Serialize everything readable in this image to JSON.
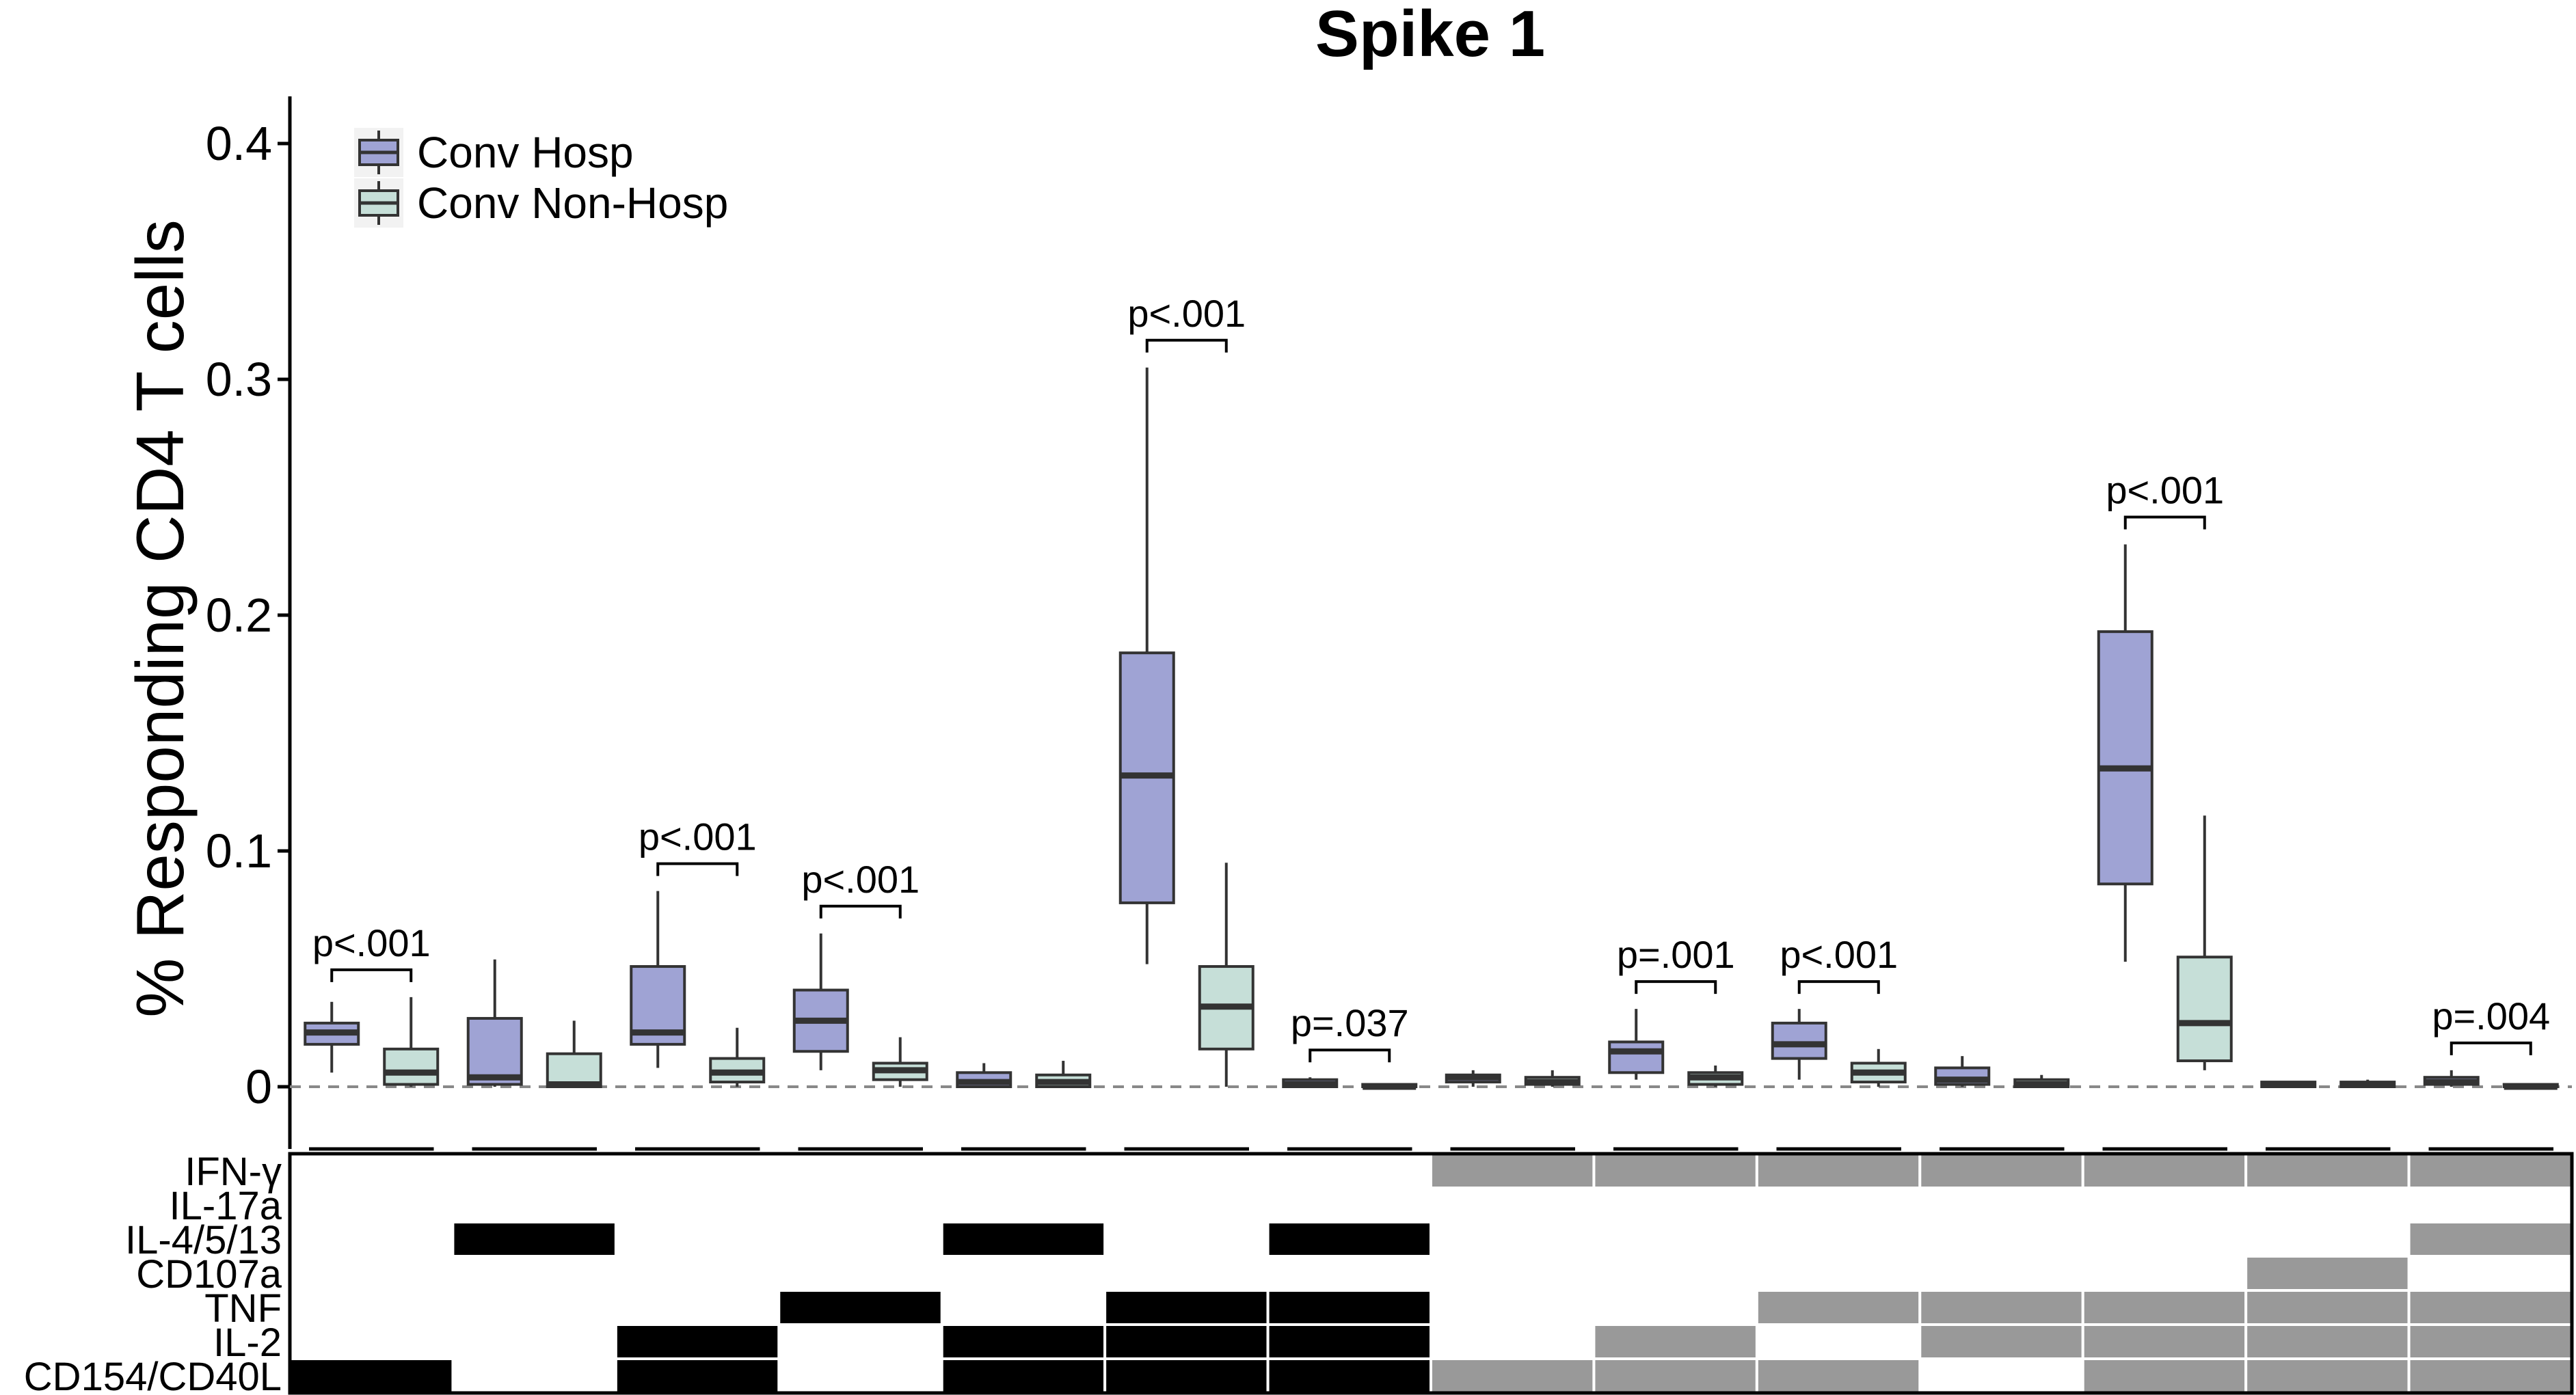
{
  "chart_data": {
    "type": "box",
    "title": "Spike 1",
    "ylabel": "% Responding CD4 T cells",
    "ylim": [
      -0.02,
      0.42
    ],
    "yticks": [
      0,
      0.1,
      0.2,
      0.3,
      0.4
    ],
    "ytick_labels": [
      "0",
      "0.1",
      "0.2",
      "0.3",
      "0.4"
    ],
    "reference_line": 0,
    "legend_position": "top-left",
    "series": [
      {
        "name": "Conv Hosp",
        "color": "#9fa3d4"
      },
      {
        "name": "Conv Non-Hosp",
        "color": "#c6dfd8"
      }
    ],
    "groups": [
      {
        "boxes": [
          {
            "min": 0.006,
            "q1": 0.018,
            "median": 0.023,
            "q3": 0.027,
            "max": 0.036
          },
          {
            "min": 0.0,
            "q1": 0.001,
            "median": 0.006,
            "q3": 0.016,
            "max": 0.038
          }
        ],
        "pvalue": "p<.001"
      },
      {
        "boxes": [
          {
            "min": 0.0,
            "q1": 0.001,
            "median": 0.004,
            "q3": 0.029,
            "max": 0.054
          },
          {
            "min": 0.0,
            "q1": 0.0,
            "median": 0.001,
            "q3": 0.014,
            "max": 0.028
          }
        ],
        "pvalue": ""
      },
      {
        "boxes": [
          {
            "min": 0.008,
            "q1": 0.018,
            "median": 0.023,
            "q3": 0.051,
            "max": 0.083
          },
          {
            "min": 0.0,
            "q1": 0.002,
            "median": 0.006,
            "q3": 0.012,
            "max": 0.025
          }
        ],
        "pvalue": "p<.001"
      },
      {
        "boxes": [
          {
            "min": 0.007,
            "q1": 0.015,
            "median": 0.028,
            "q3": 0.041,
            "max": 0.065
          },
          {
            "min": 0.0,
            "q1": 0.003,
            "median": 0.007,
            "q3": 0.01,
            "max": 0.021
          }
        ],
        "pvalue": "p<.001"
      },
      {
        "boxes": [
          {
            "min": 0.0,
            "q1": 0.0,
            "median": 0.002,
            "q3": 0.006,
            "max": 0.01
          },
          {
            "min": 0.0,
            "q1": 0.0,
            "median": 0.002,
            "q3": 0.005,
            "max": 0.011
          }
        ],
        "pvalue": ""
      },
      {
        "boxes": [
          {
            "min": 0.052,
            "q1": 0.078,
            "median": 0.132,
            "q3": 0.184,
            "max": 0.305
          },
          {
            "min": 0.0,
            "q1": 0.016,
            "median": 0.034,
            "q3": 0.051,
            "max": 0.095
          }
        ],
        "pvalue": "p<.001"
      },
      {
        "boxes": [
          {
            "min": 0.0,
            "q1": 0.0,
            "median": 0.001,
            "q3": 0.003,
            "max": 0.004
          },
          {
            "min": 0.0,
            "q1": 0.0,
            "median": 0.0,
            "q3": 0.001,
            "max": 0.001
          }
        ],
        "pvalue": "p=.037"
      },
      {
        "boxes": [
          {
            "min": 0.0,
            "q1": 0.002,
            "median": 0.004,
            "q3": 0.005,
            "max": 0.007
          },
          {
            "min": 0.0,
            "q1": 0.001,
            "median": 0.002,
            "q3": 0.004,
            "max": 0.007
          }
        ],
        "pvalue": ""
      },
      {
        "boxes": [
          {
            "min": 0.003,
            "q1": 0.006,
            "median": 0.015,
            "q3": 0.019,
            "max": 0.033
          },
          {
            "min": 0.0,
            "q1": 0.001,
            "median": 0.004,
            "q3": 0.006,
            "max": 0.009
          }
        ],
        "pvalue": "p=.001"
      },
      {
        "boxes": [
          {
            "min": 0.003,
            "q1": 0.012,
            "median": 0.018,
            "q3": 0.027,
            "max": 0.033
          },
          {
            "min": 0.0,
            "q1": 0.002,
            "median": 0.006,
            "q3": 0.01,
            "max": 0.016
          }
        ],
        "pvalue": "p<.001"
      },
      {
        "boxes": [
          {
            "min": 0.0,
            "q1": 0.001,
            "median": 0.003,
            "q3": 0.008,
            "max": 0.013
          },
          {
            "min": 0.0,
            "q1": 0.0,
            "median": 0.001,
            "q3": 0.003,
            "max": 0.005
          }
        ],
        "pvalue": ""
      },
      {
        "boxes": [
          {
            "min": 0.053,
            "q1": 0.086,
            "median": 0.135,
            "q3": 0.193,
            "max": 0.23
          },
          {
            "min": 0.007,
            "q1": 0.011,
            "median": 0.027,
            "q3": 0.055,
            "max": 0.115
          }
        ],
        "pvalue": "p<.001"
      },
      {
        "boxes": [
          {
            "min": 0.0,
            "q1": 0.0,
            "median": 0.001,
            "q3": 0.002,
            "max": 0.002
          },
          {
            "min": 0.0,
            "q1": 0.0,
            "median": 0.001,
            "q3": 0.002,
            "max": 0.003
          }
        ],
        "pvalue": ""
      },
      {
        "boxes": [
          {
            "min": 0.0,
            "q1": 0.001,
            "median": 0.002,
            "q3": 0.004,
            "max": 0.007
          },
          {
            "min": 0.0,
            "q1": 0.0,
            "median": 0.0,
            "q3": 0.001,
            "max": 0.001
          }
        ],
        "pvalue": "p=.004"
      }
    ],
    "matrix": {
      "rows": [
        "IFN-γ",
        "IL-17a",
        "IL-4/5/13",
        "CD107a",
        "TNF",
        "IL-2",
        "CD154/CD40L"
      ],
      "colors": {
        "1": "#000000",
        "2": "#999999"
      },
      "cells": [
        [
          0,
          0,
          0,
          0,
          0,
          0,
          0,
          2,
          2,
          2,
          2,
          2,
          2,
          2
        ],
        [
          0,
          0,
          0,
          0,
          0,
          0,
          0,
          0,
          0,
          0,
          0,
          0,
          0,
          0
        ],
        [
          0,
          1,
          0,
          0,
          1,
          0,
          1,
          0,
          0,
          0,
          0,
          0,
          0,
          2
        ],
        [
          0,
          0,
          0,
          0,
          0,
          0,
          0,
          0,
          0,
          0,
          0,
          0,
          2,
          0
        ],
        [
          0,
          0,
          0,
          1,
          0,
          1,
          1,
          0,
          0,
          2,
          2,
          2,
          2,
          2
        ],
        [
          0,
          0,
          1,
          0,
          1,
          1,
          1,
          0,
          2,
          0,
          2,
          2,
          2,
          2
        ],
        [
          1,
          0,
          1,
          0,
          1,
          1,
          1,
          2,
          2,
          2,
          0,
          2,
          2,
          2
        ]
      ]
    }
  }
}
